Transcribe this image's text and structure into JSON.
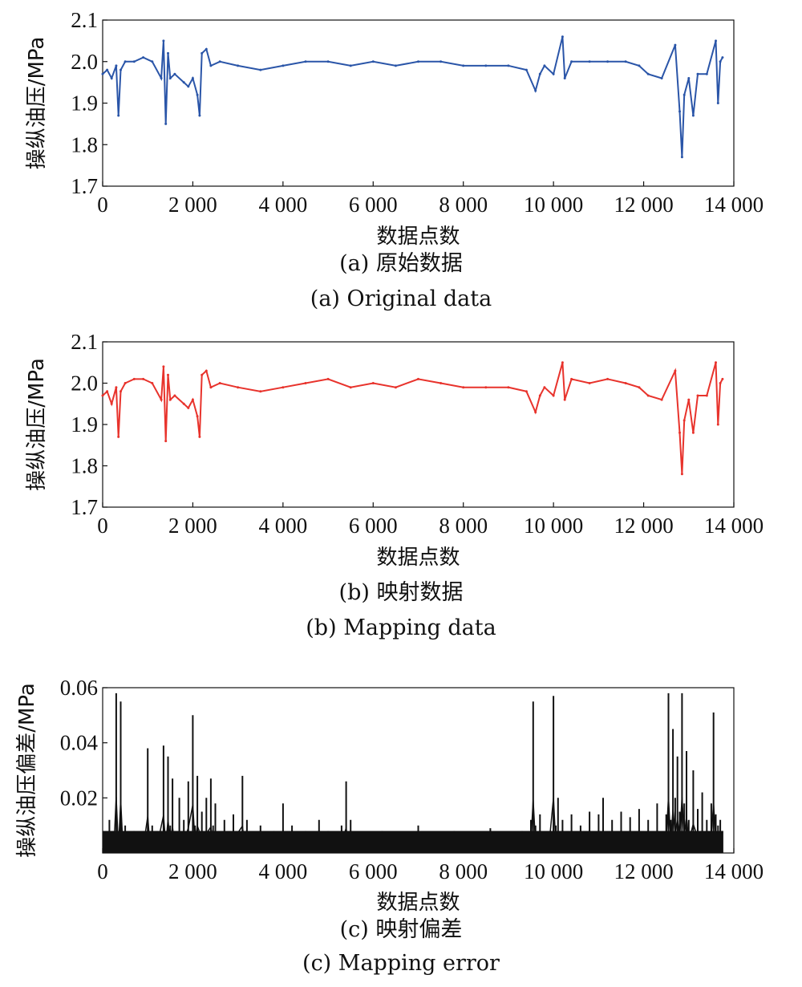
{
  "chart_data": [
    {
      "id": "a",
      "type": "line",
      "color": "#2a55a8",
      "xlabel": "数据点数",
      "ylabel": "操纵油压/MPa",
      "xlim": [
        0,
        14000
      ],
      "ylim": [
        1.7,
        2.1
      ],
      "x_ticks": [
        "0",
        "2 000",
        "4 000",
        "6 000",
        "8 000",
        "10 000",
        "12 000",
        "14 000"
      ],
      "y_ticks": [
        "1.7",
        "1.8",
        "1.9",
        "2.0",
        "2.1"
      ],
      "caption_cn": "(a) 原始数据",
      "caption_en": "(a) Original data",
      "series": [
        {
          "x": [
            0,
            100,
            200,
            300,
            350,
            400,
            500,
            700,
            900,
            1100,
            1300,
            1350,
            1400,
            1450,
            1500,
            1600,
            1800,
            1900,
            2000,
            2100,
            2150,
            2200,
            2300,
            2400,
            2600,
            3000,
            3500,
            4000,
            4500,
            5000,
            5500,
            6000,
            6500,
            7000,
            7500,
            8000,
            8500,
            9000,
            9400,
            9600,
            9700,
            9800,
            10000,
            10200,
            10250,
            10400,
            10800,
            11200,
            11600,
            11900,
            12100,
            12400,
            12700,
            12800,
            12850,
            12900,
            13000,
            13100,
            13200,
            13400,
            13600,
            13650,
            13700,
            13750
          ],
          "y": [
            1.97,
            1.98,
            1.96,
            1.99,
            1.87,
            1.98,
            2.0,
            2.0,
            2.01,
            2.0,
            1.96,
            2.05,
            1.85,
            2.02,
            1.96,
            1.97,
            1.95,
            1.94,
            1.96,
            1.92,
            1.87,
            2.02,
            2.03,
            1.99,
            2.0,
            1.99,
            1.98,
            1.99,
            2.0,
            2.0,
            1.99,
            2.0,
            1.99,
            2.0,
            2.0,
            1.99,
            1.99,
            1.99,
            1.98,
            1.93,
            1.97,
            1.99,
            1.97,
            2.06,
            1.96,
            2.0,
            2.0,
            2.0,
            2.0,
            1.99,
            1.97,
            1.96,
            2.04,
            1.88,
            1.77,
            1.92,
            1.96,
            1.87,
            1.97,
            1.97,
            2.05,
            1.9,
            2.0,
            2.01
          ]
        }
      ]
    },
    {
      "id": "b",
      "type": "line",
      "color": "#e8332c",
      "xlabel": "数据点数",
      "ylabel": "操纵油压/MPa",
      "xlim": [
        0,
        14000
      ],
      "ylim": [
        1.7,
        2.1
      ],
      "x_ticks": [
        "0",
        "2 000",
        "4 000",
        "6 000",
        "8 000",
        "10 000",
        "12 000",
        "14 000"
      ],
      "y_ticks": [
        "1.7",
        "1.8",
        "1.9",
        "2.0",
        "2.1"
      ],
      "caption_cn": "(b) 映射数据",
      "caption_en": "(b) Mapping data",
      "series": [
        {
          "x": [
            0,
            100,
            200,
            300,
            350,
            400,
            500,
            700,
            900,
            1100,
            1300,
            1350,
            1400,
            1450,
            1500,
            1600,
            1800,
            1900,
            2000,
            2100,
            2150,
            2200,
            2300,
            2400,
            2600,
            3000,
            3500,
            4000,
            4500,
            5000,
            5500,
            6000,
            6500,
            7000,
            7500,
            8000,
            8500,
            9000,
            9400,
            9600,
            9700,
            9800,
            10000,
            10200,
            10250,
            10400,
            10800,
            11200,
            11600,
            11900,
            12100,
            12400,
            12700,
            12800,
            12850,
            12900,
            13000,
            13100,
            13200,
            13400,
            13600,
            13650,
            13700,
            13750
          ],
          "y": [
            1.97,
            1.98,
            1.95,
            1.99,
            1.87,
            1.98,
            2.0,
            2.01,
            2.01,
            2.0,
            1.96,
            2.04,
            1.86,
            2.02,
            1.96,
            1.97,
            1.95,
            1.94,
            1.96,
            1.92,
            1.87,
            2.02,
            2.03,
            1.99,
            2.0,
            1.99,
            1.98,
            1.99,
            2.0,
            2.01,
            1.99,
            2.0,
            1.99,
            2.01,
            2.0,
            1.99,
            1.99,
            1.99,
            1.98,
            1.93,
            1.97,
            1.99,
            1.97,
            2.05,
            1.96,
            2.01,
            2.0,
            2.01,
            2.0,
            1.99,
            1.97,
            1.96,
            2.03,
            1.88,
            1.78,
            1.91,
            1.96,
            1.88,
            1.97,
            1.97,
            2.05,
            1.9,
            2.0,
            2.01
          ]
        }
      ]
    },
    {
      "id": "c",
      "type": "line",
      "color": "#111111",
      "xlabel": "数据点数",
      "ylabel": "操纵油压偏差/MPa",
      "xlim": [
        0,
        14000
      ],
      "ylim": [
        0,
        0.06
      ],
      "x_ticks": [
        "0",
        "2 000",
        "4 000",
        "6 000",
        "8 000",
        "10 000",
        "12 000",
        "14 000"
      ],
      "y_ticks": [
        "0.02",
        "0.04",
        "0.06"
      ],
      "caption_cn": "(c) 映射偏差",
      "caption_en": "(c) Mapping error",
      "series": [
        {
          "x": [
            0,
            150,
            250,
            300,
            350,
            400,
            450,
            500,
            550,
            700,
            900,
            1000,
            1050,
            1100,
            1200,
            1350,
            1400,
            1450,
            1500,
            1550,
            1600,
            1700,
            1800,
            1900,
            2000,
            2050,
            2100,
            2200,
            2300,
            2400,
            2450,
            2500,
            2700,
            2900,
            3100,
            3150,
            3200,
            3500,
            3800,
            4000,
            4200,
            4500,
            4800,
            5000,
            5300,
            5400,
            5450,
            5500,
            5800,
            6200,
            6600,
            7000,
            7400,
            7800,
            8200,
            8600,
            9000,
            9300,
            9500,
            9550,
            9600,
            9700,
            9900,
            10000,
            10050,
            10100,
            10200,
            10400,
            10600,
            10800,
            11000,
            11100,
            11300,
            11500,
            11700,
            11900,
            12100,
            12300,
            12500,
            12550,
            12600,
            12650,
            12700,
            12750,
            12800,
            12850,
            12900,
            12950,
            13000,
            13100,
            13200,
            13300,
            13400,
            13500,
            13550,
            13600,
            13650,
            13700,
            13750
          ],
          "y": [
            0.006,
            0.012,
            0.008,
            0.058,
            0.004,
            0.055,
            0.006,
            0.01,
            0.005,
            0.008,
            0.006,
            0.038,
            0.007,
            0.01,
            0.006,
            0.039,
            0.008,
            0.035,
            0.01,
            0.027,
            0.008,
            0.02,
            0.012,
            0.026,
            0.05,
            0.01,
            0.028,
            0.015,
            0.02,
            0.027,
            0.01,
            0.018,
            0.012,
            0.014,
            0.028,
            0.008,
            0.012,
            0.01,
            0.008,
            0.018,
            0.01,
            0.008,
            0.012,
            0.008,
            0.01,
            0.026,
            0.006,
            0.012,
            0.006,
            0.008,
            0.006,
            0.01,
            0.006,
            0.008,
            0.006,
            0.009,
            0.006,
            0.008,
            0.012,
            0.055,
            0.01,
            0.014,
            0.008,
            0.057,
            0.01,
            0.02,
            0.012,
            0.014,
            0.01,
            0.015,
            0.014,
            0.02,
            0.012,
            0.015,
            0.013,
            0.016,
            0.012,
            0.018,
            0.014,
            0.058,
            0.012,
            0.045,
            0.02,
            0.035,
            0.015,
            0.058,
            0.018,
            0.037,
            0.012,
            0.03,
            0.016,
            0.022,
            0.012,
            0.018,
            0.051,
            0.014,
            0.01,
            0.012,
            0.008
          ]
        }
      ]
    }
  ]
}
